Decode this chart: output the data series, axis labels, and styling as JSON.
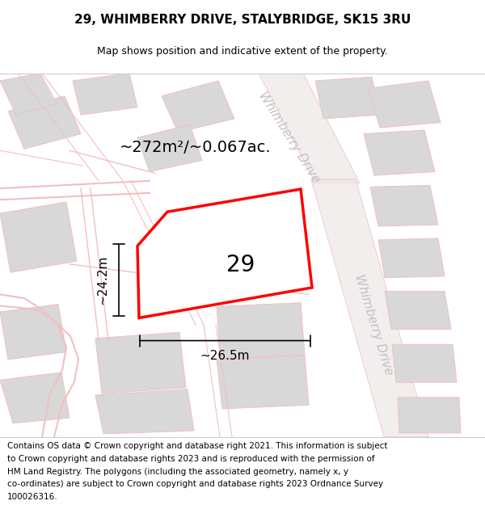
{
  "title": "29, WHIMBERRY DRIVE, STALYBRIDGE, SK15 3RU",
  "subtitle": "Map shows position and indicative extent of the property.",
  "area_text": "~272m²/~0.067ac.",
  "label_number": "29",
  "dim_width": "~26.5m",
  "dim_height": "~24.2m",
  "footer_lines": [
    "Contains OS data © Crown copyright and database right 2021. This information is subject",
    "to Crown copyright and database rights 2023 and is reproduced with the permission of",
    "HM Land Registry. The polygons (including the associated geometry, namely x, y",
    "co-ordinates) are subject to Crown copyright and database rights 2023 Ordnance Survey",
    "100026316."
  ],
  "bg_color": "#f8f8f8",
  "road_color": "#f0c0c0",
  "building_color": "#d8d8d8",
  "plot_color": "#ff0000",
  "title_fontsize": 11,
  "subtitle_fontsize": 9,
  "footer_fontsize": 7.5,
  "area_fontsize": 14,
  "number_fontsize": 20,
  "dim_fontsize": 11,
  "road_label_fontsize": 11
}
